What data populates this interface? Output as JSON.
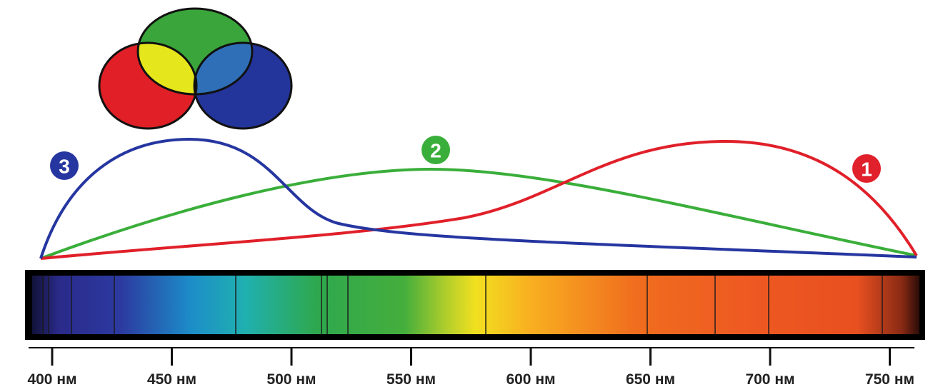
{
  "curves": [
    {
      "label": "1"
    },
    {
      "label": "2"
    },
    {
      "label": "3"
    }
  ],
  "axis": {
    "ticks": [
      "400 нм",
      "450 нм",
      "500 нм",
      "550 нм",
      "600 нм",
      "650 нм",
      "700 нм",
      "750 нм"
    ]
  }
}
